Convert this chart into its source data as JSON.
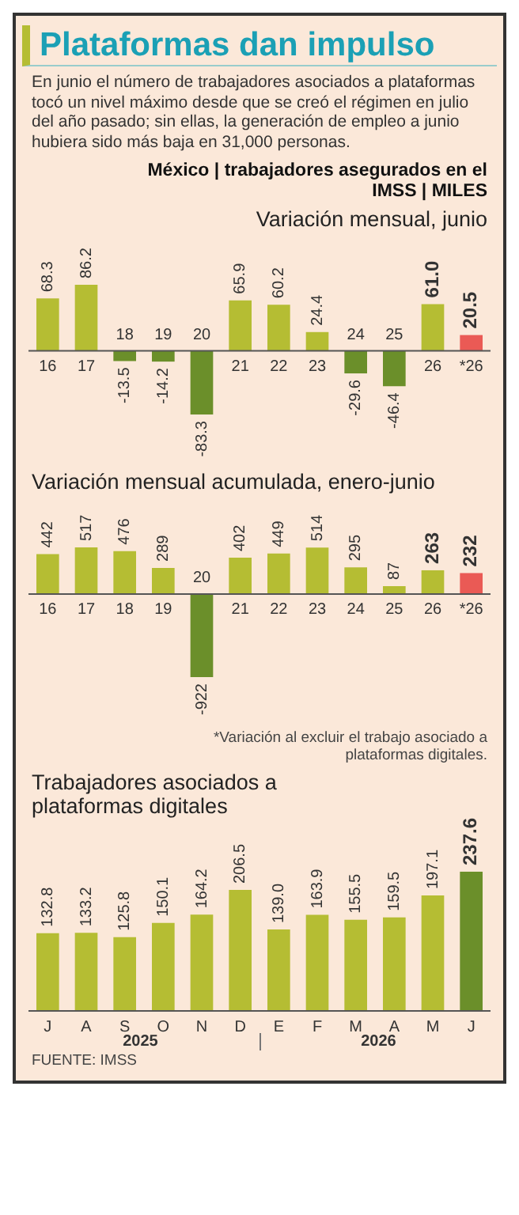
{
  "chart_data": [
    {
      "type": "other",
      "title": "Plataformas dan impulso",
      "subtitle": "En junio el número de trabajadores asociados a plataformas tocó un nivel máximo desde que se creó el régimen en julio del año pasado; sin ellas, la generación de empleo a junio hubiera sido más baja en 31,000 personas.",
      "annotations": [
        "México | trabajadores asegurados en el IMSS | MILES"
      ]
    },
    {
      "type": "bar",
      "title": "Variación mensual, junio",
      "tick_labels": "x",
      "categories": [
        "16",
        "17",
        "18",
        "19",
        "20",
        "21",
        "22",
        "23",
        "24",
        "25",
        "26",
        "*26"
      ],
      "values": [
        68.3,
        86.2,
        -13.5,
        -14.2,
        -83.3,
        65.9,
        60.2,
        24.4,
        -29.6,
        -46.4,
        61.0,
        20.5
      ],
      "colors": [
        "#b5bd33",
        "#b5bd33",
        "#6b8f2a",
        "#6b8f2a",
        "#6b8f2a",
        "#b5bd33",
        "#b5bd33",
        "#b5bd33",
        "#6b8f2a",
        "#6b8f2a",
        "#b5bd33",
        "#ea5a55"
      ],
      "value_labels": [
        "68.3",
        "86.2",
        "-13.5",
        "-14.2",
        "-83.3",
        "65.9",
        "60.2",
        "24.4",
        "-29.6",
        "-46.4",
        "61.0",
        "20.5"
      ]
    },
    {
      "type": "bar",
      "title": "Variación mensual acumulada, enero-junio",
      "tick_labels": "x",
      "categories": [
        "16",
        "17",
        "18",
        "19",
        "20",
        "21",
        "22",
        "23",
        "24",
        "25",
        "26",
        "*26"
      ],
      "values": [
        442,
        517,
        476,
        289,
        -922,
        402,
        449,
        514,
        295,
        87,
        263,
        232
      ],
      "colors": [
        "#b5bd33",
        "#b5bd33",
        "#b5bd33",
        "#b5bd33",
        "#6b8f2a",
        "#b5bd33",
        "#b5bd33",
        "#b5bd33",
        "#b5bd33",
        "#b5bd33",
        "#b5bd33",
        "#ea5a55"
      ],
      "value_labels": [
        "442",
        "517",
        "476",
        "289",
        "-922",
        "402",
        "449",
        "514",
        "295",
        "87",
        "263",
        "232"
      ],
      "annotations": [
        "*Variación al excluir el trabajo asociado a plataformas digitales."
      ]
    },
    {
      "type": "bar",
      "title": "Trabajadores asociados a plataformas digitales",
      "tick_labels": "x",
      "categories": [
        "J",
        "A",
        "S",
        "O",
        "N",
        "D",
        "E",
        "F",
        "M",
        "A",
        "M",
        "J"
      ],
      "values": [
        132.8,
        133.2,
        125.8,
        150.1,
        164.2,
        206.5,
        139.0,
        163.9,
        155.5,
        159.5,
        197.1,
        237.6
      ],
      "colors": [
        "#b5bd33",
        "#b5bd33",
        "#b5bd33",
        "#b5bd33",
        "#b5bd33",
        "#b5bd33",
        "#b5bd33",
        "#b5bd33",
        "#b5bd33",
        "#b5bd33",
        "#b5bd33",
        "#6b8f2a"
      ],
      "value_labels": [
        "132.8",
        "133.2",
        "125.8",
        "150.1",
        "164.2",
        "206.5",
        "139.0",
        "163.9",
        "155.5",
        "159.5",
        "197.1",
        "237.6"
      ],
      "annotations": [
        "2025",
        "2026",
        "FUENTE:  IMSS"
      ]
    }
  ]
}
